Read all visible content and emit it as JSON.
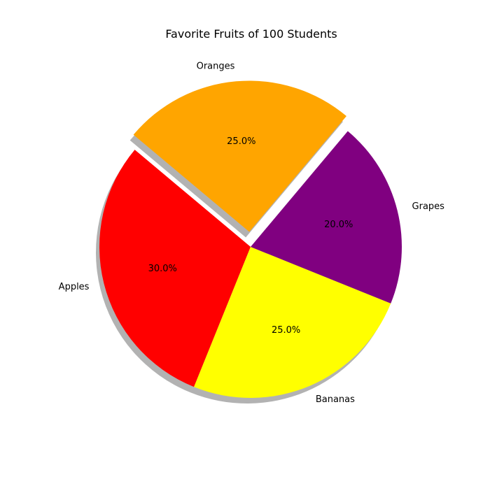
{
  "chart_data": {
    "type": "pie",
    "title": "Favorite Fruits of 100 Students",
    "categories": [
      "Apples",
      "Bananas",
      "Grapes",
      "Oranges"
    ],
    "values": [
      30,
      25,
      20,
      25
    ],
    "percent_labels": [
      "30.0%",
      "25.0%",
      "20.0%",
      "25.0%"
    ],
    "colors": [
      "#ff0000",
      "#ffff00",
      "#800080",
      "#ffa500"
    ],
    "exploded": [
      "Oranges"
    ],
    "shadow": true,
    "start_angle_deg": 140,
    "direction": "counterclockwise"
  }
}
